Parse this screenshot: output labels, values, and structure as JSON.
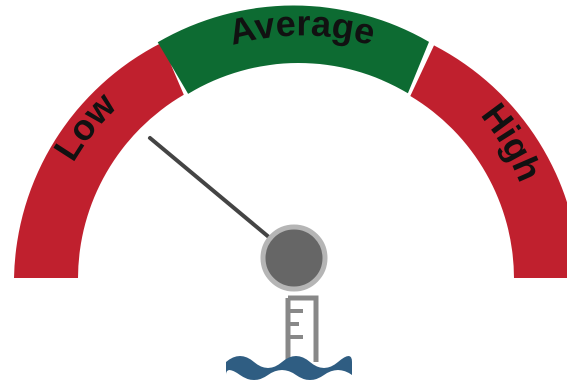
{
  "gauge": {
    "segments": [
      {
        "id": "low",
        "label": "Low",
        "color": "#c0202e"
      },
      {
        "id": "average",
        "label": "Average",
        "color": "#0d6b32"
      },
      {
        "id": "high",
        "label": "High",
        "color": "#c0202e"
      }
    ],
    "needle_color": "#444444",
    "hub_color": "#666666",
    "icon": "water-level-gauge-icon",
    "icon_colors": {
      "staff": "#888888",
      "water": "#2f5d82"
    }
  }
}
